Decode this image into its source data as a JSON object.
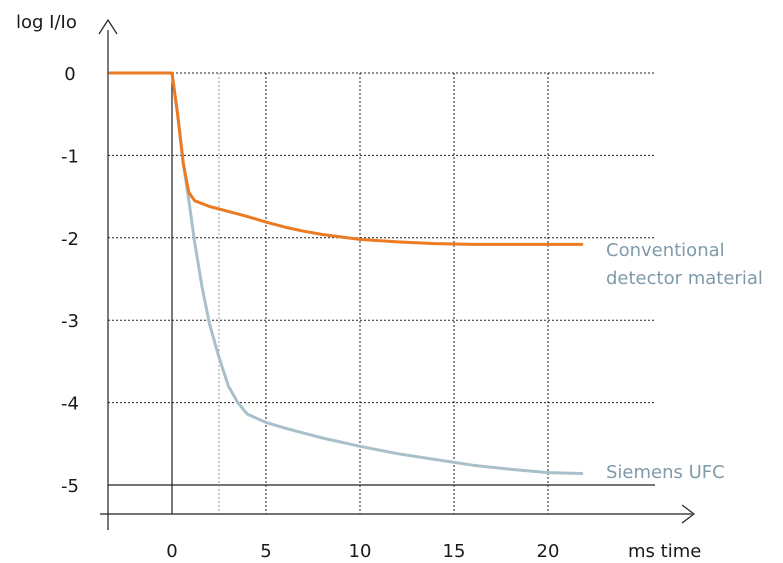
{
  "chart_data": {
    "type": "line",
    "title": "",
    "xlabel": "ms time",
    "ylabel": "log I/Io",
    "xlim": [
      -3.3,
      24.5
    ],
    "ylim": [
      -5.45,
      0.55
    ],
    "x_ticks": [
      0,
      5,
      10,
      15,
      20
    ],
    "x_tick_labels": [
      "0",
      "5",
      "10",
      "15",
      "20"
    ],
    "y_ticks": [
      0,
      -1,
      -2,
      -3,
      -4,
      -5
    ],
    "y_tick_labels": [
      "0",
      "-1",
      "-2",
      "-3",
      "-4",
      "-5"
    ],
    "grid": true,
    "legend": "inline-right",
    "series": [
      {
        "label_lines": [
          "Conventional",
          "detector material"
        ],
        "color": "#ec7a23",
        "points": [
          [
            -3.3,
            0
          ],
          [
            0,
            0
          ],
          [
            0.3,
            -0.5
          ],
          [
            0.6,
            -1.1
          ],
          [
            0.9,
            -1.45
          ],
          [
            1.2,
            -1.55
          ],
          [
            2,
            -1.62
          ],
          [
            3,
            -1.68
          ],
          [
            4,
            -1.74
          ],
          [
            5,
            -1.81
          ],
          [
            6,
            -1.87
          ],
          [
            7,
            -1.92
          ],
          [
            8,
            -1.96
          ],
          [
            9,
            -1.99
          ],
          [
            10,
            -2.02
          ],
          [
            12,
            -2.05
          ],
          [
            14,
            -2.07
          ],
          [
            16,
            -2.08
          ],
          [
            18,
            -2.08
          ],
          [
            20,
            -2.08
          ],
          [
            21.8,
            -2.08
          ]
        ]
      },
      {
        "label_lines": [
          "Siemens UFC"
        ],
        "color": "#a9bfc9",
        "points": [
          [
            -3.3,
            0
          ],
          [
            0,
            0
          ],
          [
            0.3,
            -0.5
          ],
          [
            0.6,
            -1.1
          ],
          [
            0.9,
            -1.55
          ],
          [
            1.2,
            -2.05
          ],
          [
            1.6,
            -2.6
          ],
          [
            2,
            -3.05
          ],
          [
            2.5,
            -3.45
          ],
          [
            3,
            -3.8
          ],
          [
            3.5,
            -4.0
          ],
          [
            4,
            -4.14
          ],
          [
            5,
            -4.24
          ],
          [
            6,
            -4.31
          ],
          [
            7,
            -4.37
          ],
          [
            8,
            -4.43
          ],
          [
            10,
            -4.53
          ],
          [
            12,
            -4.62
          ],
          [
            14,
            -4.69
          ],
          [
            16,
            -4.76
          ],
          [
            18,
            -4.81
          ],
          [
            20,
            -4.85
          ],
          [
            21.8,
            -4.86
          ]
        ]
      }
    ]
  }
}
